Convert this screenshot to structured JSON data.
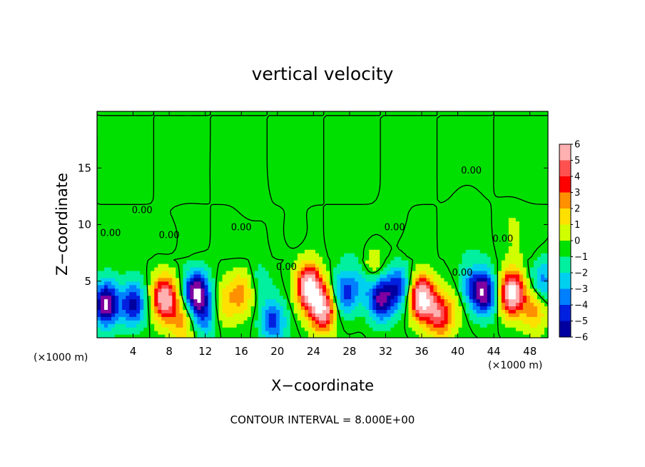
{
  "chart_data": {
    "type": "heatmap",
    "title": "vertical velocity",
    "xlabel": "X−coordinate",
    "ylabel": "Z−coordinate",
    "x_unit_left": "(×1000 m)",
    "x_unit_right": "(×1000 m)",
    "xlim": [
      0,
      50
    ],
    "ylim": [
      0,
      20
    ],
    "x_ticks": [
      4,
      8,
      12,
      16,
      20,
      24,
      28,
      32,
      36,
      40,
      44,
      48
    ],
    "y_ticks": [
      5,
      10,
      15
    ],
    "colorbar": {
      "levels": [
        "6",
        "5",
        "4",
        "3",
        "2",
        "1",
        "0",
        "−1",
        "−2",
        "−3",
        "−4",
        "−5",
        "−6"
      ],
      "range": [
        -6,
        6
      ],
      "colors": [
        "#ffb0b0",
        "#ff5050",
        "#ff0000",
        "#ff9000",
        "#ffe000",
        "#d0ff00",
        "#00e000",
        "#00f0a0",
        "#00d0f0",
        "#0080ff",
        "#0020e0",
        "#0000a0",
        "#8000a0"
      ]
    },
    "contour_labels": [
      "0.00",
      "0.00",
      "0.00",
      "0.00",
      "0.00",
      "0.00",
      "0.00",
      "0.00",
      "0.00"
    ],
    "cells": [
      {
        "x": 1,
        "z": 3,
        "w": -7
      },
      {
        "x": 4,
        "z": 3,
        "w": -5
      },
      {
        "x": 7.5,
        "z": 3.5,
        "w": 7
      },
      {
        "x": 9.5,
        "z": 1.5,
        "w": 3
      },
      {
        "x": 11,
        "z": 4,
        "w": -7
      },
      {
        "x": 12,
        "z": 2,
        "w": -3
      },
      {
        "x": 14,
        "z": 3,
        "w": 2
      },
      {
        "x": 16,
        "z": 4,
        "w": 3
      },
      {
        "x": 18,
        "z": 5,
        "w": -1
      },
      {
        "x": 19.5,
        "z": 1.5,
        "w": -4
      },
      {
        "x": 23.5,
        "z": 4.5,
        "w": 8
      },
      {
        "x": 25,
        "z": 2.5,
        "w": 7
      },
      {
        "x": 27.5,
        "z": 4,
        "w": -4
      },
      {
        "x": 29.5,
        "z": 5,
        "w": -2
      },
      {
        "x": 30.5,
        "z": 6,
        "w": 2
      },
      {
        "x": 31.5,
        "z": 3.5,
        "w": -6
      },
      {
        "x": 33.5,
        "z": 4.5,
        "w": -4
      },
      {
        "x": 36,
        "z": 3.5,
        "w": 8
      },
      {
        "x": 38,
        "z": 2,
        "w": 5
      },
      {
        "x": 40,
        "z": 3,
        "w": 1
      },
      {
        "x": 41.5,
        "z": 4.5,
        "w": -3
      },
      {
        "x": 43,
        "z": 4,
        "w": -6
      },
      {
        "x": 46,
        "z": 4,
        "w": 8
      },
      {
        "x": 48.5,
        "z": 2.5,
        "w": 3
      },
      {
        "x": 49.5,
        "z": 5,
        "w": -3
      },
      {
        "x": 22,
        "z": 9,
        "w": -0.6
      },
      {
        "x": 33,
        "z": 10,
        "w": -0.5
      },
      {
        "x": 17,
        "z": 12,
        "w": 0.3
      },
      {
        "x": 10,
        "z": 15,
        "w": 0.2
      },
      {
        "x": 41,
        "z": 12,
        "w": -0.4
      },
      {
        "x": 8,
        "z": 8.5,
        "w": -0.5
      },
      {
        "x": 46,
        "z": 10,
        "w": 0.4
      }
    ],
    "footnote": "CONTOUR INTERVAL = 8.000E+00"
  }
}
